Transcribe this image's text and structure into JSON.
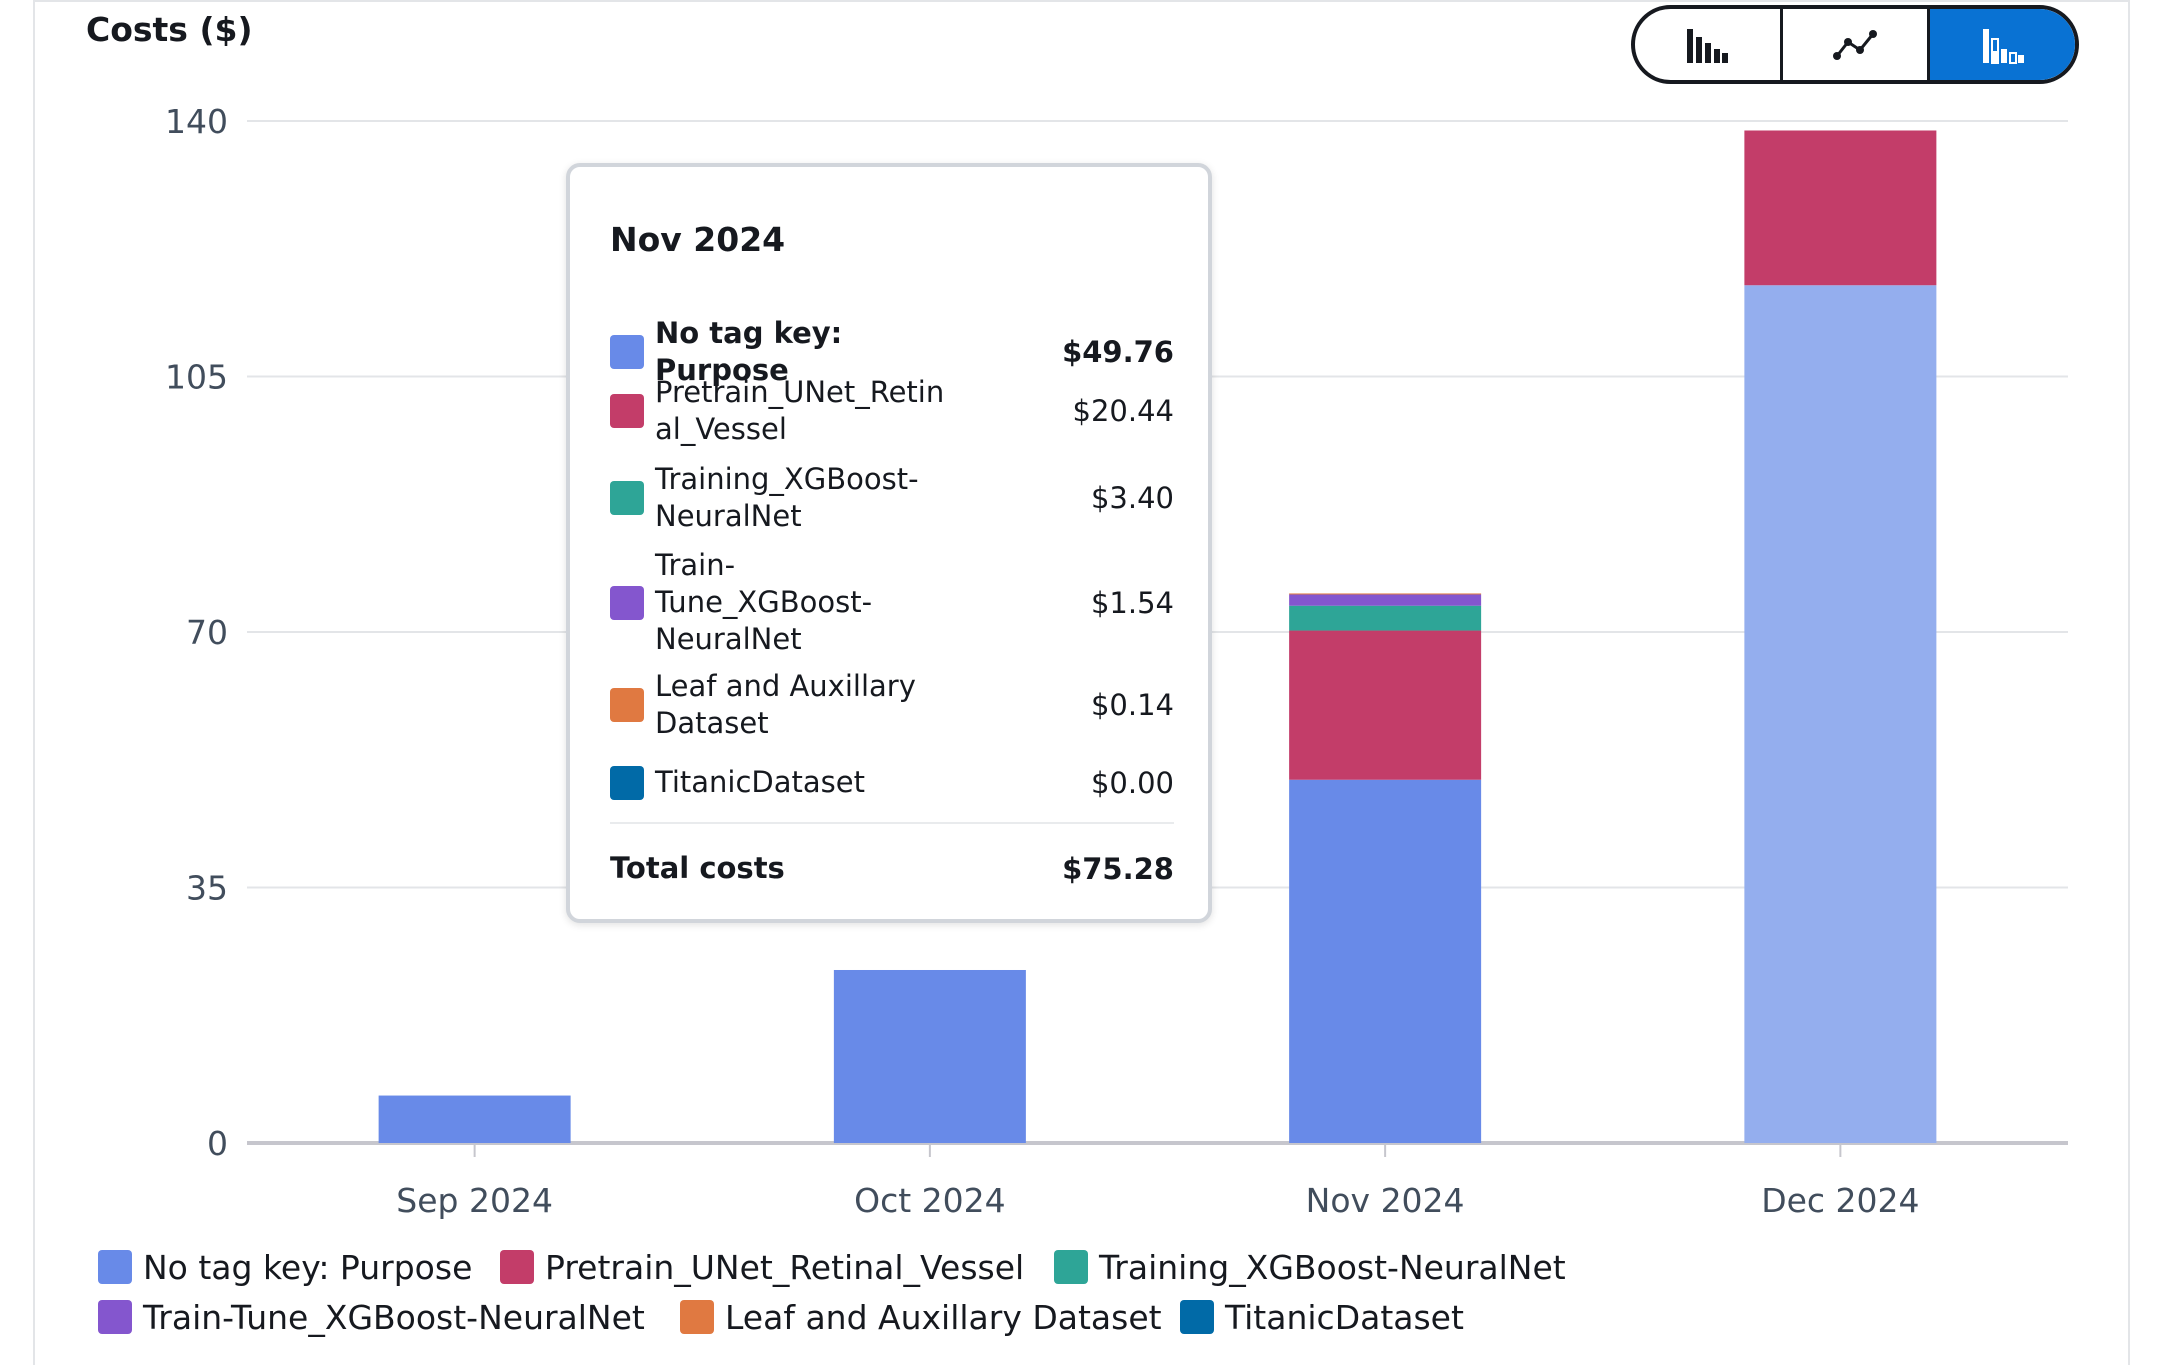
{
  "colors": {
    "no_tag": "#688ae8",
    "pretrain": "#c33d69",
    "training": "#2ea597",
    "train_tune": "#8456ce",
    "leaf": "#e07941",
    "titanic": "#016aa7",
    "dec_bar": "#94aeee",
    "accent": "#0972d3"
  },
  "toggle": {
    "options": [
      {
        "name": "bar-chart-icon",
        "selected": false
      },
      {
        "name": "line-chart-icon",
        "selected": false
      },
      {
        "name": "stacked-bar-chart-icon",
        "selected": true
      }
    ]
  },
  "chart_data": {
    "type": "bar",
    "stacked": true,
    "title": "Costs ($)",
    "xlabel": "",
    "ylabel": "",
    "ylim": [
      0,
      140
    ],
    "yticks": [
      "0",
      "35",
      "70",
      "105",
      "140"
    ],
    "categories": [
      "Sep 2024",
      "Oct 2024",
      "Nov 2024",
      "Dec 2024"
    ],
    "series": [
      {
        "name": "No tag key: Purpose",
        "values": [
          6.5,
          23.7,
          49.76,
          117.5
        ]
      },
      {
        "name": "Pretrain_UNet_Retinal_Vessel",
        "values": [
          0,
          0,
          20.44,
          21.2
        ]
      },
      {
        "name": "Training_XGBoost-NeuralNet",
        "values": [
          0,
          0,
          3.4,
          0
        ]
      },
      {
        "name": "Train-Tune_XGBoost-NeuralNet",
        "values": [
          0,
          0,
          1.54,
          0
        ]
      },
      {
        "name": "Leaf and Auxillary Dataset",
        "values": [
          0,
          0,
          0.14,
          0
        ]
      },
      {
        "name": "TitanicDataset",
        "values": [
          0,
          0,
          0.0,
          0
        ]
      }
    ],
    "legend_position": "bottom",
    "grid": true
  },
  "tooltip": {
    "title": "Nov 2024",
    "rows": [
      {
        "label": "No tag key: Purpose",
        "value": "$49.76"
      },
      {
        "label": "Pretrain_UNet_Retinal_Vessel",
        "value": "$20.44"
      },
      {
        "label": "Training_XGBoost-NeuralNet",
        "value": "$3.40"
      },
      {
        "label": "Train-Tune_XGBoost-NeuralNet",
        "value": "$1.54"
      },
      {
        "label": "Leaf and Auxillary Dataset",
        "value": "$0.14"
      },
      {
        "label": "TitanicDataset",
        "value": "$0.00"
      }
    ],
    "total_label": "Total costs",
    "total_value": "$75.28"
  },
  "legend": [
    "No tag key: Purpose",
    "Pretrain_UNet_Retinal_Vessel",
    "Training_XGBoost-NeuralNet",
    "Train-Tune_XGBoost-NeuralNet",
    "Leaf and Auxillary Dataset",
    "TitanicDataset"
  ]
}
